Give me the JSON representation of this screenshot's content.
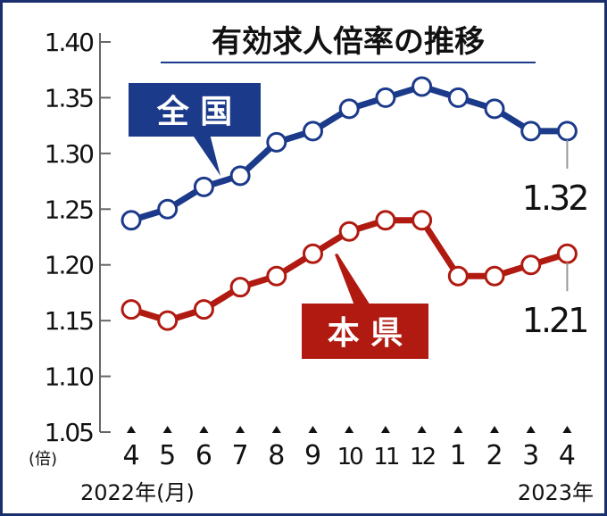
{
  "chart_data": {
    "type": "line",
    "title": "有効求人倍率の推移",
    "ylabel": "(倍)",
    "xlabel_start": "2022年(月)",
    "xlabel_end": "2023年",
    "ylim": [
      1.05,
      1.4
    ],
    "yticks": [
      "1.40",
      "1.35",
      "1.30",
      "1.25",
      "1.20",
      "1.15",
      "1.10",
      "1.05"
    ],
    "categories": [
      "4",
      "5",
      "6",
      "7",
      "8",
      "9",
      "10",
      "11",
      "12",
      "1",
      "2",
      "3",
      "4"
    ],
    "series": [
      {
        "name": "全 国",
        "color": "#1b3a8a",
        "values": [
          1.24,
          1.25,
          1.27,
          1.28,
          1.31,
          1.32,
          1.34,
          1.35,
          1.36,
          1.35,
          1.34,
          1.32,
          1.32
        ],
        "end_label": "1.32"
      },
      {
        "name": "本 県",
        "color": "#b01a10",
        "values": [
          1.16,
          1.15,
          1.16,
          1.18,
          1.19,
          1.21,
          1.23,
          1.24,
          1.24,
          1.19,
          1.19,
          1.2,
          1.21
        ],
        "end_label": "1.21"
      }
    ]
  }
}
